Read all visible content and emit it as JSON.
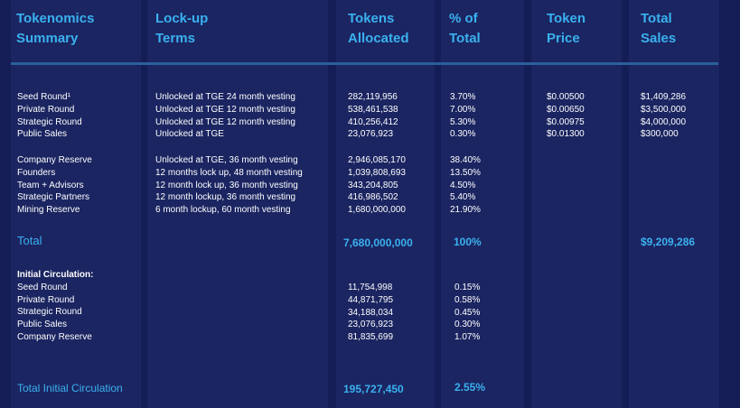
{
  "headers": {
    "summary": "Tokenomics\nSummary",
    "lockup": "Lock-up\nTerms",
    "tokens": "Tokens\nAllocated",
    "percent": "% of\nTotal",
    "price": "Token\nPrice",
    "sales": "Total\nSales"
  },
  "sale_rounds": [
    {
      "name": "Seed Round¹",
      "terms": "Unlocked at TGE 24 month vesting",
      "tokens": "282,119,956",
      "percent": "3.70%",
      "price": "$0.00500",
      "sales": "$1,409,286"
    },
    {
      "name": "Private Round",
      "terms": "Unlocked at TGE 12 month vesting",
      "tokens": "538,461,538",
      "percent": "7.00%",
      "price": "$0.00650",
      "sales": "$3,500,000"
    },
    {
      "name": "Strategic Round",
      "terms": "Unlocked at TGE 12 month vesting",
      "tokens": "410,256,412",
      "percent": "5.30%",
      "price": "$0.00975",
      "sales": "$4,000,000"
    },
    {
      "name": "Public Sales",
      "terms": "Unlocked at TGE",
      "tokens": "23,076,923",
      "percent": "0.30%",
      "price": "$0.01300",
      "sales": "$300,000"
    }
  ],
  "reserves": [
    {
      "name": "Company Reserve",
      "terms": "Unlocked at TGE, 36 month vesting",
      "tokens": "2,946,085,170",
      "percent": "38.40%"
    },
    {
      "name": "Founders",
      "terms": "12 months lock up, 48 month vesting",
      "tokens": "1,039,808,693",
      "percent": "13.50%"
    },
    {
      "name": "Team + Advisors",
      "terms": "12 month lock up, 36 month vesting",
      "tokens": "343,204,805",
      "percent": "4.50%"
    },
    {
      "name": "Strategic Partners",
      "terms": "12 month lockup, 36 month vesting",
      "tokens": "416,986,502",
      "percent": "5.40%"
    },
    {
      "name": "Mining Reserve",
      "terms": "6 month lockup, 60 month vesting",
      "tokens": "1,680,000,000",
      "percent": "21.90%"
    }
  ],
  "total": {
    "label": "Total",
    "tokens": "7,680,000,000",
    "percent": "100%",
    "sales": "$9,209,286"
  },
  "initial_circulation": {
    "heading": "Initial Circulation:",
    "rows": [
      {
        "name": "Seed Round",
        "tokens": "11,754,998",
        "percent": "0.15%"
      },
      {
        "name": "Private Round",
        "tokens": "44,871,795",
        "percent": "0.58%"
      },
      {
        "name": "Strategic Round",
        "tokens": "34,188,034",
        "percent": "0.45%"
      },
      {
        "name": "Public Sales",
        "tokens": "23,076,923",
        "percent": "0.30%"
      },
      {
        "name": "Company Reserve",
        "tokens": "81,835,699",
        "percent": "1.07%"
      }
    ]
  },
  "total_initial": {
    "label": "Total Initial Circulation",
    "tokens": "195,727,450",
    "percent": "2.55%"
  },
  "colors": {
    "background": "#151d57",
    "accent": "#3ab1ef",
    "text": "#ffffff"
  }
}
